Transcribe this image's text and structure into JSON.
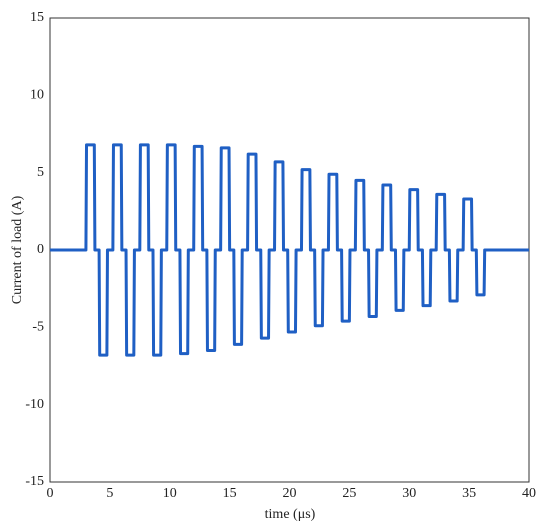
{
  "chart_data": {
    "type": "line",
    "x_label": "time (μs)",
    "y_label": "Current of load (A)",
    "x": [
      0,
      3.0,
      3.05,
      3.7,
      3.75,
      4.1,
      4.15,
      4.75,
      4.8,
      5.25,
      5.3,
      5.95,
      6.0,
      6.35,
      6.4,
      7.0,
      7.05,
      7.5,
      7.55,
      8.2,
      8.25,
      8.6,
      8.65,
      9.25,
      9.3,
      9.75,
      9.8,
      10.45,
      10.5,
      10.85,
      10.9,
      11.5,
      11.55,
      12.0,
      12.05,
      12.7,
      12.75,
      13.1,
      13.15,
      13.75,
      13.8,
      14.25,
      14.3,
      14.95,
      15.0,
      15.35,
      15.4,
      16.0,
      16.05,
      16.5,
      16.55,
      17.2,
      17.25,
      17.6,
      17.65,
      18.25,
      18.3,
      18.75,
      18.8,
      19.45,
      19.5,
      19.85,
      19.9,
      20.5,
      20.55,
      21.0,
      21.05,
      21.7,
      21.75,
      22.1,
      22.15,
      22.75,
      22.8,
      23.25,
      23.3,
      23.95,
      24.0,
      24.35,
      24.4,
      25.0,
      25.05,
      25.5,
      25.55,
      26.2,
      26.25,
      26.6,
      26.65,
      27.25,
      27.3,
      27.75,
      27.8,
      28.45,
      28.5,
      28.85,
      28.9,
      29.5,
      29.55,
      30.0,
      30.05,
      30.7,
      30.75,
      31.1,
      31.15,
      31.75,
      31.8,
      32.25,
      32.3,
      32.95,
      33.0,
      33.35,
      33.4,
      34.0,
      34.05,
      34.5,
      34.55,
      35.2,
      35.25,
      35.6,
      35.65,
      36.25,
      36.3,
      40
    ],
    "values": [
      0,
      0,
      6.8,
      6.8,
      0,
      0,
      -6.8,
      -6.8,
      0,
      0,
      6.8,
      6.8,
      0,
      0,
      -6.8,
      -6.8,
      0,
      0,
      6.8,
      6.8,
      0,
      0,
      -6.8,
      -6.8,
      0,
      0,
      6.8,
      6.8,
      0,
      0,
      -6.7,
      -6.7,
      0,
      0,
      6.7,
      6.7,
      0,
      0,
      -6.5,
      -6.5,
      0,
      0,
      6.6,
      6.6,
      0,
      0,
      -6.1,
      -6.1,
      0,
      0,
      6.2,
      6.2,
      0,
      0,
      -5.7,
      -5.7,
      0,
      0,
      5.7,
      5.7,
      0,
      0,
      -5.3,
      -5.3,
      0,
      0,
      5.2,
      5.2,
      0,
      0,
      -4.9,
      -4.9,
      0,
      0,
      4.9,
      4.9,
      0,
      0,
      -4.6,
      -4.6,
      0,
      0,
      4.5,
      4.5,
      0,
      0,
      -4.3,
      -4.3,
      0,
      0,
      4.2,
      4.2,
      0,
      0,
      -3.9,
      -3.9,
      0,
      0,
      3.9,
      3.9,
      0,
      0,
      -3.6,
      -3.6,
      0,
      0,
      3.6,
      3.6,
      0,
      0,
      -3.3,
      -3.3,
      0,
      0,
      3.3,
      3.3,
      0,
      0,
      -2.9,
      -2.9,
      0,
      0
    ],
    "color": "#1f5fc4",
    "xlim": [
      0,
      40
    ],
    "xticks": [
      0,
      5,
      10,
      15,
      20,
      25,
      30,
      35,
      40
    ],
    "ylim": [
      -15,
      15
    ],
    "yticks": [
      -15,
      -10,
      -5,
      0,
      5,
      10,
      15
    ],
    "grid": true
  }
}
